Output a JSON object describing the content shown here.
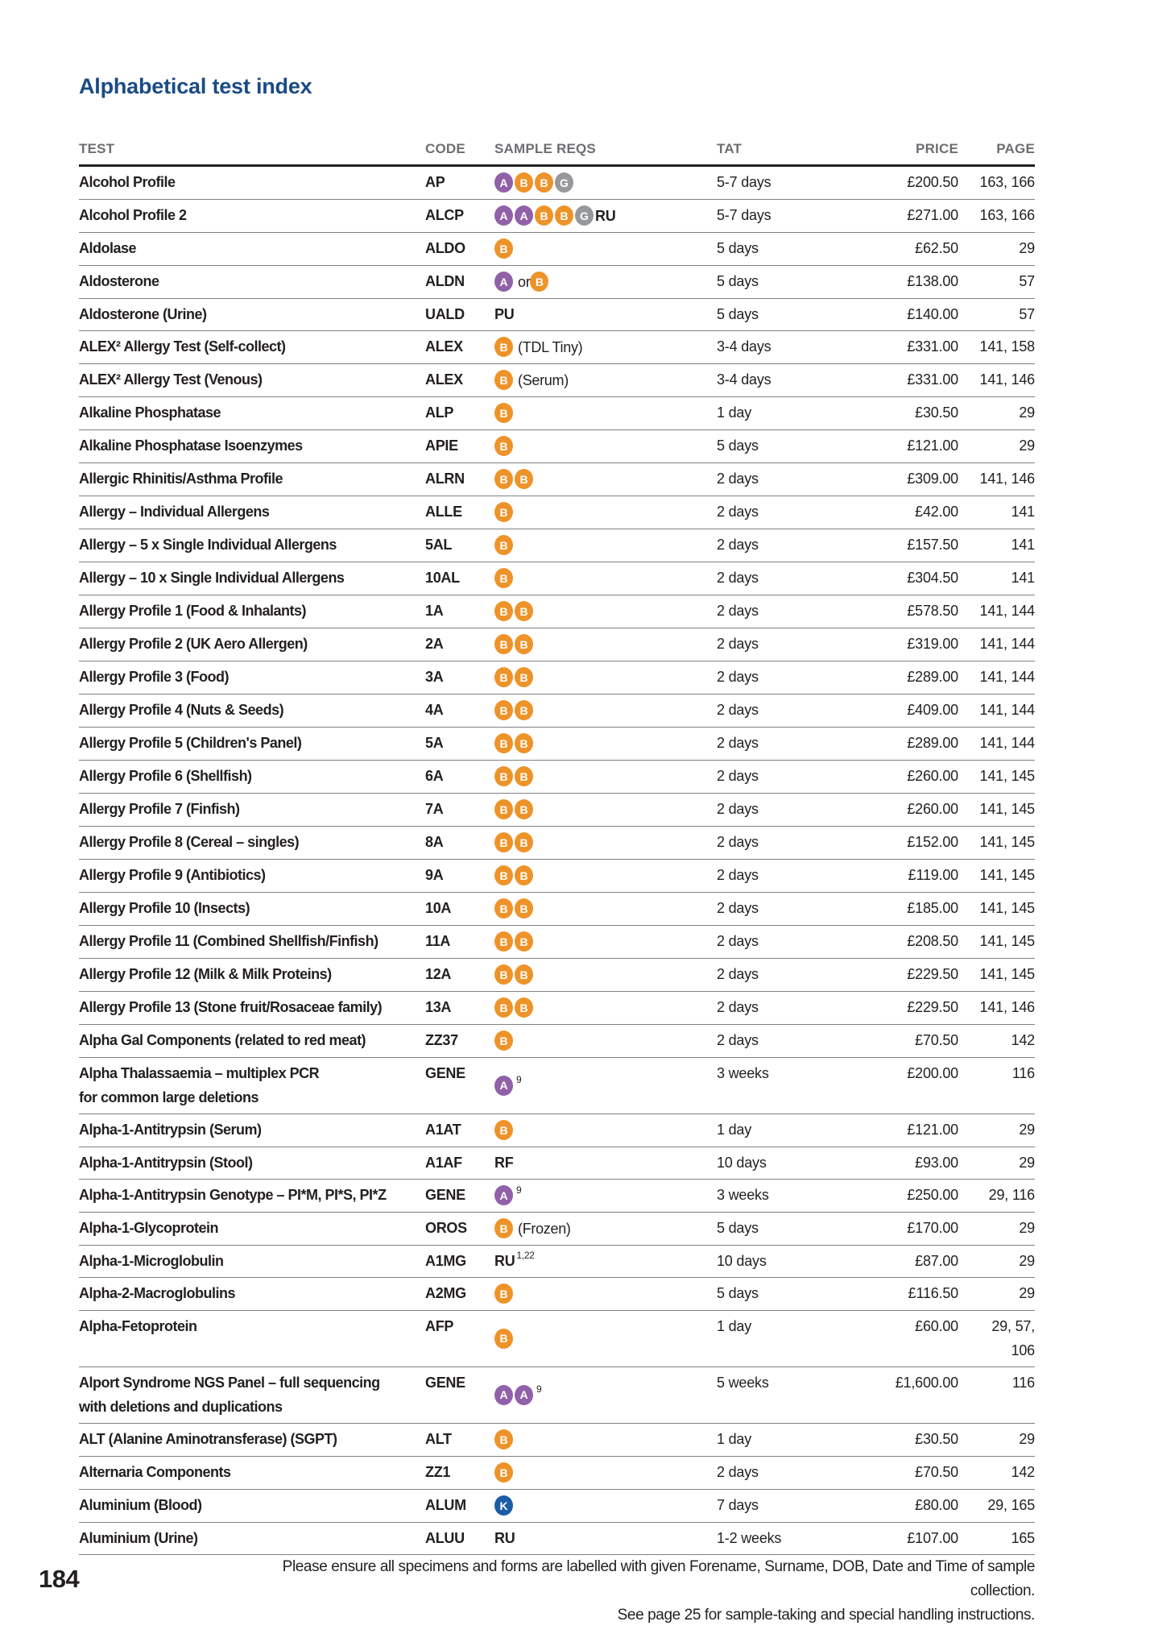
{
  "page": {
    "title": "Alphabetical test index",
    "page_number": "184",
    "footer_line1": "Please ensure all specimens and forms are labelled with given Forename, Surname, DOB, Date and Time of sample collection.",
    "footer_line2": "See page 25 for sample-taking and special handling instructions."
  },
  "colors": {
    "title_blue": "#1A4B85",
    "header_gray": "#6D6E71",
    "text_black": "#231F20",
    "row_line_gray": "#808184",
    "badge_purple": "#9061A8",
    "badge_orange": "#EE9329",
    "badge_gray": "#97989B",
    "badge_blue": "#1C5CA5"
  },
  "table": {
    "headers": [
      "TEST",
      "CODE",
      "SAMPLE REQS",
      "TAT",
      "PRICE",
      "PAGE"
    ],
    "rows": [
      {
        "test": "Alcohol Profile",
        "code": "AP",
        "sample": [
          {
            "b": "A",
            "c": "purple"
          },
          {
            "b": "B",
            "c": "orange"
          },
          {
            "b": "B",
            "c": "orange"
          },
          {
            "b": "G",
            "c": "gray"
          }
        ],
        "tat": "5-7 days",
        "price": "£200.50",
        "page": "163, 166"
      },
      {
        "test": "Alcohol Profile 2",
        "code": "ALCP",
        "sample": [
          {
            "b": "A",
            "c": "purple"
          },
          {
            "b": "A",
            "c": "purple"
          },
          {
            "b": "B",
            "c": "orange"
          },
          {
            "b": "B",
            "c": "orange"
          },
          {
            "b": "G",
            "c": "gray"
          },
          {
            "t": "RU"
          }
        ],
        "tat": "5-7 days",
        "price": "£271.00",
        "page": "163, 166"
      },
      {
        "test": "Aldolase",
        "code": "ALDO",
        "sample": [
          {
            "b": "B",
            "c": "orange"
          }
        ],
        "tat": "5 days",
        "price": "£62.50",
        "page": "29"
      },
      {
        "test": "Aldosterone",
        "code": "ALDN",
        "sample": [
          {
            "b": "A",
            "c": "purple"
          },
          {
            "r": "or"
          },
          {
            "b": "B",
            "c": "orange"
          }
        ],
        "tat": "5 days",
        "price": "£138.00",
        "page": "57"
      },
      {
        "test": "Aldosterone (Urine)",
        "code": "UALD",
        "sample": [
          {
            "t": "PU"
          }
        ],
        "tat": "5 days",
        "price": "£140.00",
        "page": "57"
      },
      {
        "test": "ALEX² Allergy Test (Self-collect)",
        "code": "ALEX",
        "sample": [
          {
            "b": "B",
            "c": "orange"
          },
          {
            "r": "(TDL Tiny)"
          }
        ],
        "tat": "3-4 days",
        "price": "£331.00",
        "page": "141, 158"
      },
      {
        "test": "ALEX² Allergy Test (Venous)",
        "code": "ALEX",
        "sample": [
          {
            "b": "B",
            "c": "orange"
          },
          {
            "r": "(Serum)"
          }
        ],
        "tat": "3-4 days",
        "price": "£331.00",
        "page": "141, 146"
      },
      {
        "test": "Alkaline Phosphatase",
        "code": "ALP",
        "sample": [
          {
            "b": "B",
            "c": "orange"
          }
        ],
        "tat": "1 day",
        "price": "£30.50",
        "page": "29"
      },
      {
        "test": "Alkaline Phosphatase Isoenzymes",
        "code": "APIE",
        "sample": [
          {
            "b": "B",
            "c": "orange"
          }
        ],
        "tat": "5 days",
        "price": "£121.00",
        "page": "29"
      },
      {
        "test": "Allergic Rhinitis/Asthma Profile",
        "code": "ALRN",
        "sample": [
          {
            "b": "B",
            "c": "orange"
          },
          {
            "b": "B",
            "c": "orange"
          }
        ],
        "tat": "2 days",
        "price": "£309.00",
        "page": "141, 146"
      },
      {
        "test": "Allergy – Individual Allergens",
        "code": "ALLE",
        "sample": [
          {
            "b": "B",
            "c": "orange"
          }
        ],
        "tat": "2 days",
        "price": "£42.00",
        "page": "141"
      },
      {
        "test": "Allergy – 5 x Single Individual Allergens",
        "code": "5AL",
        "sample": [
          {
            "b": "B",
            "c": "orange"
          }
        ],
        "tat": "2 days",
        "price": "£157.50",
        "page": "141"
      },
      {
        "test": "Allergy – 10 x Single Individual Allergens",
        "code": "10AL",
        "sample": [
          {
            "b": "B",
            "c": "orange"
          }
        ],
        "tat": "2 days",
        "price": "£304.50",
        "page": "141"
      },
      {
        "test": "Allergy Profile 1 (Food & Inhalants)",
        "code": "1A",
        "sample": [
          {
            "b": "B",
            "c": "orange"
          },
          {
            "b": "B",
            "c": "orange"
          }
        ],
        "tat": "2 days",
        "price": "£578.50",
        "page": "141, 144"
      },
      {
        "test": "Allergy Profile 2 (UK Aero Allergen)",
        "code": "2A",
        "sample": [
          {
            "b": "B",
            "c": "orange"
          },
          {
            "b": "B",
            "c": "orange"
          }
        ],
        "tat": "2 days",
        "price": "£319.00",
        "page": "141, 144"
      },
      {
        "test": "Allergy Profile 3 (Food)",
        "code": "3A",
        "sample": [
          {
            "b": "B",
            "c": "orange"
          },
          {
            "b": "B",
            "c": "orange"
          }
        ],
        "tat": "2 days",
        "price": "£289.00",
        "page": "141, 144"
      },
      {
        "test": "Allergy Profile 4 (Nuts & Seeds)",
        "code": "4A",
        "sample": [
          {
            "b": "B",
            "c": "orange"
          },
          {
            "b": "B",
            "c": "orange"
          }
        ],
        "tat": "2 days",
        "price": "£409.00",
        "page": "141, 144"
      },
      {
        "test": "Allergy Profile 5 (Children's Panel)",
        "code": "5A",
        "sample": [
          {
            "b": "B",
            "c": "orange"
          },
          {
            "b": "B",
            "c": "orange"
          }
        ],
        "tat": "2 days",
        "price": "£289.00",
        "page": "141, 144"
      },
      {
        "test": "Allergy Profile 6 (Shellfish)",
        "code": "6A",
        "sample": [
          {
            "b": "B",
            "c": "orange"
          },
          {
            "b": "B",
            "c": "orange"
          }
        ],
        "tat": "2 days",
        "price": "£260.00",
        "page": "141, 145"
      },
      {
        "test": "Allergy Profile 7 (Finfish)",
        "code": "7A",
        "sample": [
          {
            "b": "B",
            "c": "orange"
          },
          {
            "b": "B",
            "c": "orange"
          }
        ],
        "tat": "2 days",
        "price": "£260.00",
        "page": "141, 145"
      },
      {
        "test": "Allergy Profile 8 (Cereal – singles)",
        "code": "8A",
        "sample": [
          {
            "b": "B",
            "c": "orange"
          },
          {
            "b": "B",
            "c": "orange"
          }
        ],
        "tat": "2 days",
        "price": "£152.00",
        "page": "141, 145"
      },
      {
        "test": "Allergy Profile 9 (Antibiotics)",
        "code": "9A",
        "sample": [
          {
            "b": "B",
            "c": "orange"
          },
          {
            "b": "B",
            "c": "orange"
          }
        ],
        "tat": "2 days",
        "price": "£119.00",
        "page": "141, 145"
      },
      {
        "test": "Allergy Profile 10 (Insects)",
        "code": "10A",
        "sample": [
          {
            "b": "B",
            "c": "orange"
          },
          {
            "b": "B",
            "c": "orange"
          }
        ],
        "tat": "2 days",
        "price": "£185.00",
        "page": "141, 145"
      },
      {
        "test": "Allergy Profile 11 (Combined Shellfish/Finfish)",
        "code": "11A",
        "sample": [
          {
            "b": "B",
            "c": "orange"
          },
          {
            "b": "B",
            "c": "orange"
          }
        ],
        "tat": "2 days",
        "price": "£208.50",
        "page": "141, 145"
      },
      {
        "test": "Allergy Profile 12 (Milk & Milk Proteins)",
        "code": "12A",
        "sample": [
          {
            "b": "B",
            "c": "orange"
          },
          {
            "b": "B",
            "c": "orange"
          }
        ],
        "tat": "2 days",
        "price": "£229.50",
        "page": "141, 145"
      },
      {
        "test": "Allergy Profile 13 (Stone fruit/Rosaceae family)",
        "code": "13A",
        "sample": [
          {
            "b": "B",
            "c": "orange"
          },
          {
            "b": "B",
            "c": "orange"
          }
        ],
        "tat": "2 days",
        "price": "£229.50",
        "page": "141, 146"
      },
      {
        "test": "Alpha Gal Components (related to red meat)",
        "code": "ZZ37",
        "sample": [
          {
            "b": "B",
            "c": "orange"
          }
        ],
        "tat": "2 days",
        "price": "£70.50",
        "page": "142"
      },
      {
        "test": "Alpha Thalassaemia – multiplex PCR",
        "test2": "for common large deletions",
        "code": "GENE",
        "sample": [
          {
            "b": "A",
            "c": "purple"
          },
          {
            "s": "9"
          }
        ],
        "tat": "3 weeks",
        "price": "£200.00",
        "page": "116"
      },
      {
        "test": "Alpha-1-Antitrypsin (Serum)",
        "code": "A1AT",
        "sample": [
          {
            "b": "B",
            "c": "orange"
          }
        ],
        "tat": "1 day",
        "price": "£121.00",
        "page": "29"
      },
      {
        "test": "Alpha-1-Antitrypsin (Stool)",
        "code": "A1AF",
        "sample": [
          {
            "t": "RF"
          }
        ],
        "tat": "10 days",
        "price": "£93.00",
        "page": "29"
      },
      {
        "test": "Alpha-1-Antitrypsin Genotype – PI*M, PI*S, PI*Z",
        "code": "GENE",
        "sample": [
          {
            "b": "A",
            "c": "purple"
          },
          {
            "s": "9"
          }
        ],
        "tat": "3 weeks",
        "price": "£250.00",
        "page": "29, 116"
      },
      {
        "test": "Alpha-1-Glycoprotein",
        "code": "OROS",
        "sample": [
          {
            "b": "B",
            "c": "orange"
          },
          {
            "r": "(Frozen)"
          }
        ],
        "tat": "5 days",
        "price": "£170.00",
        "page": "29"
      },
      {
        "test": "Alpha-1-Microglobulin",
        "code": "A1MG",
        "sample": [
          {
            "t": "RU"
          },
          {
            "s": "1,22"
          }
        ],
        "tat": "10 days",
        "price": "£87.00",
        "page": "29"
      },
      {
        "test": "Alpha-2-Macroglobulins",
        "code": "A2MG",
        "sample": [
          {
            "b": "B",
            "c": "orange"
          }
        ],
        "tat": "5 days",
        "price": "£116.50",
        "page": "29"
      },
      {
        "test": "Alpha-Fetoprotein",
        "code": "AFP",
        "sample": [
          {
            "b": "B",
            "c": "orange"
          }
        ],
        "tat": "1 day",
        "price": "£60.00",
        "page": "29, 57,",
        "page2": "106"
      },
      {
        "test": "Alport Syndrome NGS Panel – full sequencing",
        "test2": "with deletions and duplications",
        "code": "GENE",
        "sample": [
          {
            "b": "A",
            "c": "purple"
          },
          {
            "b": "A",
            "c": "purple"
          },
          {
            "s": "9"
          }
        ],
        "tat": "5 weeks",
        "price": "£1,600.00",
        "page": "116"
      },
      {
        "test": "ALT (Alanine Aminotransferase) (SGPT)",
        "code": "ALT",
        "sample": [
          {
            "b": "B",
            "c": "orange"
          }
        ],
        "tat": "1 day",
        "price": "£30.50",
        "page": "29"
      },
      {
        "test": "Alternaria Components",
        "code": "ZZ1",
        "sample": [
          {
            "b": "B",
            "c": "orange"
          }
        ],
        "tat": "2 days",
        "price": "£70.50",
        "page": "142"
      },
      {
        "test": "Aluminium (Blood)",
        "code": "ALUM",
        "sample": [
          {
            "b": "K",
            "c": "blue"
          }
        ],
        "tat": "7 days",
        "price": "£80.00",
        "page": "29, 165"
      },
      {
        "test": "Aluminium (Urine)",
        "code": "ALUU",
        "sample": [
          {
            "t": "RU"
          }
        ],
        "tat": "1-2 weeks",
        "price": "£107.00",
        "page": "165"
      }
    ]
  }
}
